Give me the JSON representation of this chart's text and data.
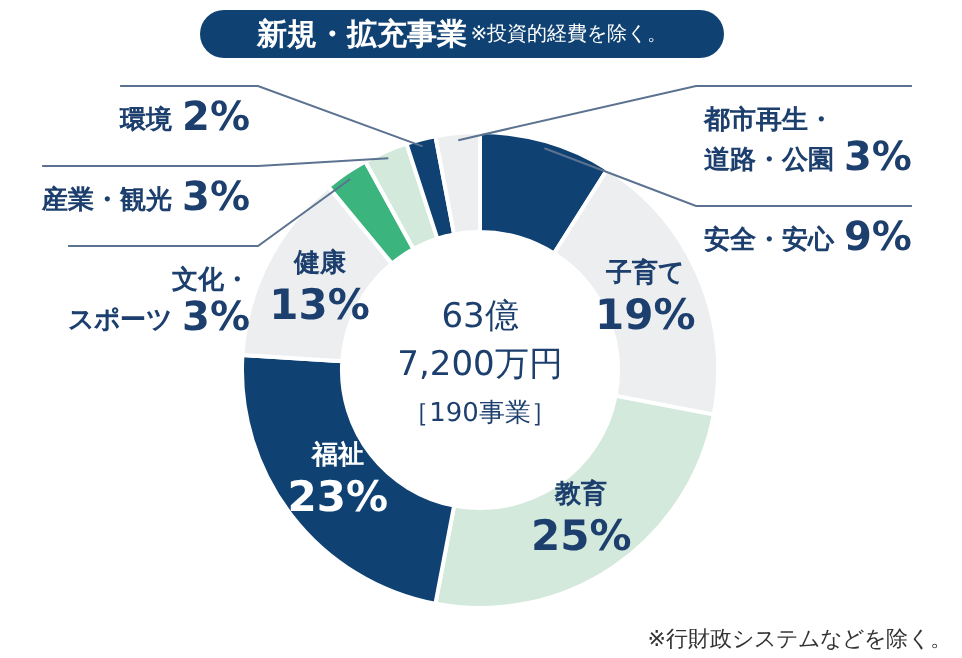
{
  "chart_data": {
    "type": "donut",
    "title": "新規・拡充事業",
    "subtitle": "※投資的経費を除く。",
    "categories": [
      "安全・安心",
      "子育て",
      "教育",
      "福祉",
      "健康",
      "文化・スポーツ",
      "産業・観光",
      "環境",
      "都市再生・道路・公園"
    ],
    "values": [
      9,
      19,
      25,
      23,
      13,
      3,
      3,
      2,
      3
    ],
    "value_labels": [
      "9%",
      "19%",
      "25%",
      "23%",
      "13%",
      "3%",
      "3%",
      "2%",
      "3%"
    ],
    "colors": [
      "#0f4273",
      "#eceef0",
      "#d2e9dc",
      "#0f4273",
      "#eceef0",
      "#3bb47e",
      "#d2e9dc",
      "#0f4273",
      "#eceef0"
    ],
    "annotations": [
      "63億",
      "7,200万円",
      "［190事業］",
      "※行財政システムなどを除く。"
    ],
    "legend": false
  }
}
